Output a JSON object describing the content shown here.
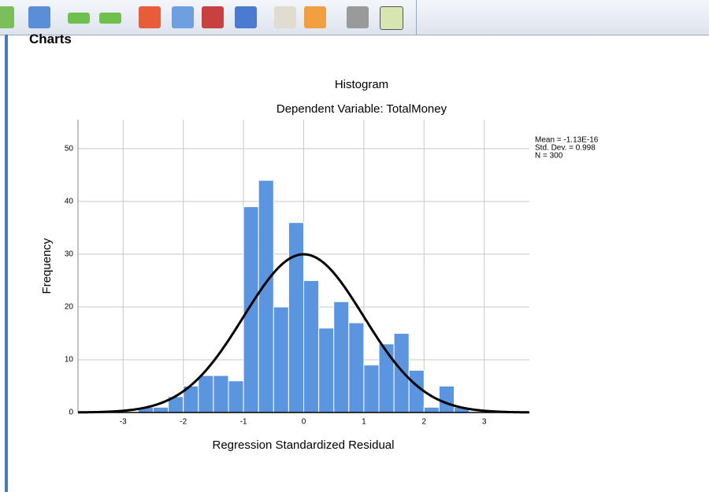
{
  "heading": "Charts",
  "chart_data": {
    "type": "histogram",
    "title": "Histogram",
    "subtitle": "Dependent Variable: TotalMoney",
    "x_label": "Regression Standardized Residual",
    "y_label": "Frequency",
    "bins": [
      -2.75,
      -2.5,
      -2.25,
      -2,
      -1.75,
      -1.5,
      -1.25,
      -1,
      -0.75,
      -0.5,
      -0.25,
      0,
      0.25,
      0.5,
      0.75,
      1,
      1.25,
      1.5,
      1.75,
      2,
      2.25,
      2.5,
      2.75
    ],
    "values": [
      1,
      1,
      3,
      5,
      7,
      7,
      6,
      39,
      44,
      20,
      36,
      25,
      16,
      21,
      17,
      9,
      13,
      15,
      8,
      1,
      5,
      1
    ],
    "color": "#5b95e0",
    "curve_color": "#000000",
    "xlim": [
      -3.75,
      3.75
    ],
    "xticks": [
      -3,
      -2,
      -1,
      0,
      1,
      2,
      3
    ],
    "ylim": [
      0,
      55.5
    ],
    "yticks": [
      0,
      10,
      20,
      30,
      40,
      50
    ],
    "grid": true,
    "stats": [
      {
        "label": "Mean = -1.13E-16",
        "value": -1.13e-16
      },
      {
        "label": "Std. Dev. = 0.998",
        "value": 0.998
      },
      {
        "label": "N = 300",
        "value": 300
      }
    ]
  }
}
